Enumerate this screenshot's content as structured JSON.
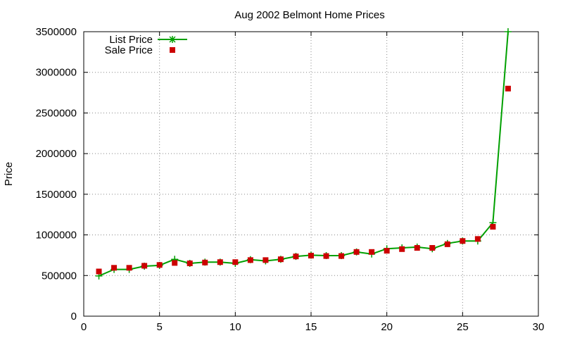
{
  "chart_data": {
    "type": "line",
    "title": "Aug 2002 Belmont Home Prices",
    "xlabel": "",
    "ylabel": "Price",
    "xlim": [
      0,
      30
    ],
    "ylim": [
      0,
      3500000
    ],
    "x_ticks": [
      0,
      5,
      10,
      15,
      20,
      25,
      30
    ],
    "y_ticks": [
      0,
      500000,
      1000000,
      1500000,
      2000000,
      2500000,
      3000000,
      3500000
    ],
    "grid": true,
    "legend_position": "top-left",
    "x": [
      1,
      2,
      3,
      4,
      5,
      6,
      7,
      8,
      9,
      10,
      11,
      12,
      13,
      14,
      15,
      16,
      17,
      18,
      19,
      20,
      21,
      22,
      23,
      24,
      25,
      26,
      27,
      28
    ],
    "series": [
      {
        "name": "List Price",
        "style": "line+cross",
        "color": "#00a000",
        "values": [
          495000,
          575000,
          575000,
          615000,
          625000,
          700000,
          650000,
          665000,
          665000,
          650000,
          695000,
          680000,
          700000,
          735000,
          750000,
          745000,
          745000,
          790000,
          765000,
          830000,
          840000,
          850000,
          830000,
          895000,
          925000,
          925000,
          1150000,
          3500000
        ]
      },
      {
        "name": "Sale Price",
        "style": "square",
        "color": "#cc0000",
        "values": [
          550000,
          595000,
          595000,
          620000,
          630000,
          655000,
          650000,
          660000,
          665000,
          665000,
          690000,
          690000,
          700000,
          735000,
          745000,
          740000,
          740000,
          790000,
          790000,
          805000,
          825000,
          840000,
          840000,
          885000,
          925000,
          950000,
          1100000,
          2800000
        ]
      }
    ]
  }
}
